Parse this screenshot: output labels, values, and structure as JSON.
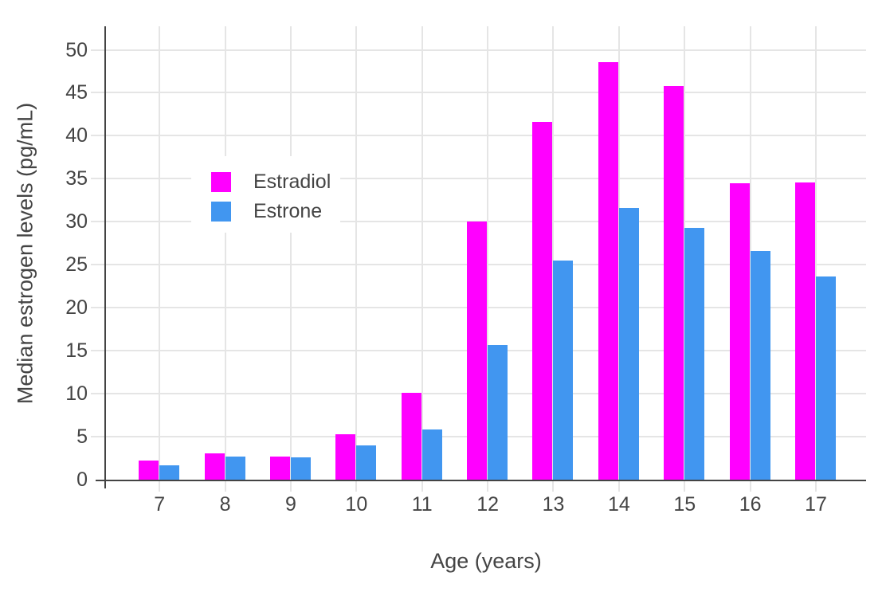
{
  "chart_data": {
    "type": "bar",
    "title": "",
    "x_title": "Age (years)",
    "y_title": "Median estrogen levels (pg/mL)",
    "categories": [
      "7",
      "8",
      "9",
      "10",
      "11",
      "12",
      "13",
      "14",
      "15",
      "16",
      "17"
    ],
    "series": [
      {
        "name": "Estradiol",
        "color": "#FF00FF",
        "values": [
          2.2,
          3.1,
          2.7,
          5.3,
          10.1,
          30.0,
          41.6,
          48.6,
          45.8,
          34.5,
          34.6
        ]
      },
      {
        "name": "Estrone",
        "color": "#4196F0",
        "values": [
          1.7,
          2.7,
          2.6,
          4.0,
          5.8,
          15.7,
          25.5,
          31.6,
          29.3,
          26.6,
          23.6
        ]
      }
    ],
    "y_ticks": [
      0,
      5,
      10,
      15,
      20,
      25,
      30,
      35,
      40,
      45,
      50
    ],
    "ylim": [
      0,
      52.7
    ],
    "xlabel": "Age (years)",
    "ylabel": "Median estrogen levels (pg/mL)",
    "grid": true,
    "legend_position": "inside-top-left",
    "colors": {
      "axis": "#444444",
      "tick_text": "#444444",
      "gridline": "#E5E5E5",
      "background": "#FFFFFF"
    }
  }
}
